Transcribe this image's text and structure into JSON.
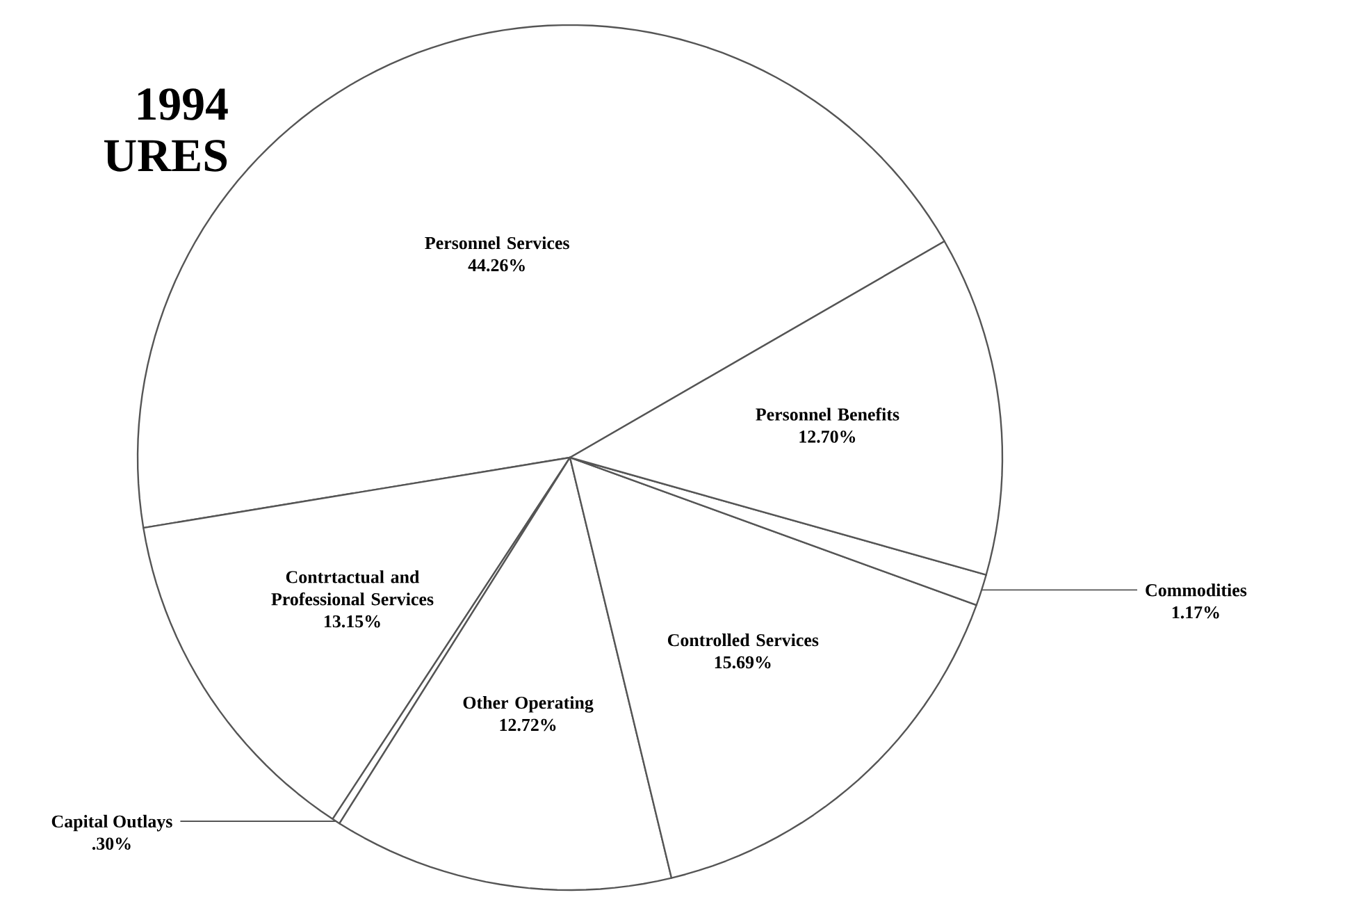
{
  "chart_data": {
    "type": "pie",
    "title": "1994",
    "subtitle": "URES",
    "categories": [
      "Personnel Services",
      "Contrtactual and Professional Services",
      "Capital Outlays",
      "Other Operating",
      "Controlled Services",
      "Commodities",
      "Personnel Benefits"
    ],
    "values": [
      44.26,
      13.15,
      0.3,
      12.72,
      15.69,
      1.17,
      12.7
    ],
    "value_labels": [
      "44.26%",
      "13.15%",
      ".30%",
      "12.72%",
      "15.69%",
      "1.17%",
      "12.70%"
    ],
    "colors": [
      "#ffffff",
      "#ffffff",
      "#ffffff",
      "#ffffff",
      "#ffffff",
      "#ffffff",
      "#ffffff"
    ]
  }
}
